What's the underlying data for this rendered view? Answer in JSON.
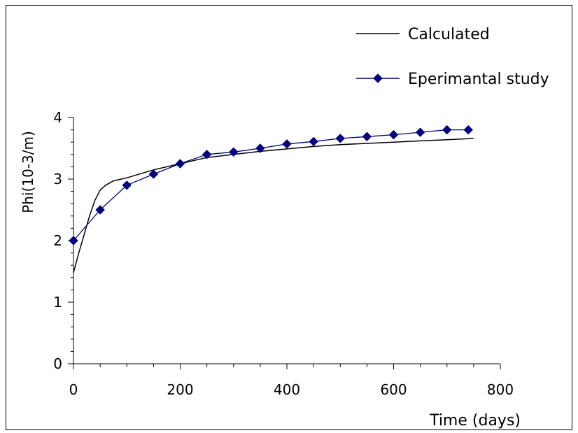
{
  "chart_data": {
    "type": "line",
    "xlabel": "Time (days)",
    "ylabel": "Phi(10-3/m)",
    "xlim": [
      0,
      800
    ],
    "ylim": [
      0,
      4
    ],
    "x_ticks": [
      "0",
      "200",
      "400",
      "600",
      "800"
    ],
    "y_ticks": [
      "0",
      "1",
      "2",
      "3",
      "4"
    ],
    "grid": false,
    "legend_position": "top-right",
    "series": [
      {
        "name": "Calculated",
        "color": "#000000",
        "marker": "none",
        "x": [
          0,
          10,
          20,
          30,
          40,
          50,
          60,
          75,
          100,
          150,
          200,
          250,
          300,
          350,
          400,
          450,
          500,
          550,
          600,
          650,
          700,
          750
        ],
        "y": [
          1.48,
          1.8,
          2.1,
          2.4,
          2.65,
          2.82,
          2.9,
          2.97,
          3.02,
          3.15,
          3.25,
          3.35,
          3.4,
          3.45,
          3.49,
          3.53,
          3.56,
          3.58,
          3.6,
          3.62,
          3.64,
          3.66
        ]
      },
      {
        "name": "Eperimantal study",
        "color": "#000080",
        "marker": "diamond",
        "x": [
          0,
          50,
          100,
          150,
          200,
          250,
          300,
          350,
          400,
          450,
          500,
          550,
          600,
          650,
          700,
          740
        ],
        "y": [
          2.0,
          2.5,
          2.9,
          3.08,
          3.25,
          3.4,
          3.44,
          3.5,
          3.57,
          3.61,
          3.66,
          3.69,
          3.72,
          3.76,
          3.8,
          3.8
        ]
      }
    ]
  }
}
